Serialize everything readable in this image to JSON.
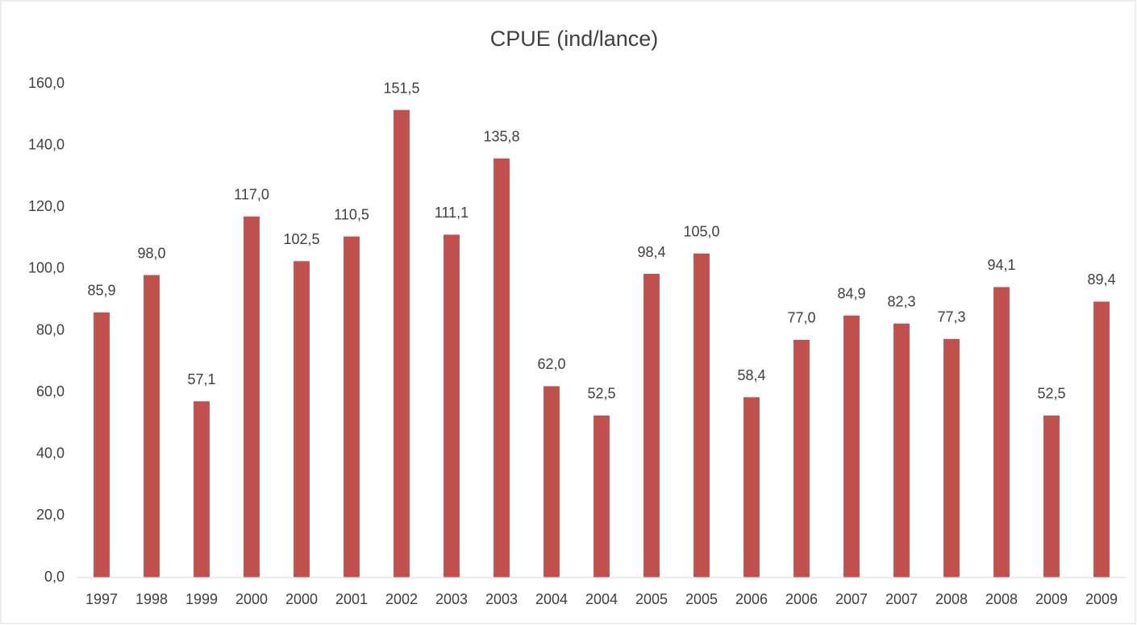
{
  "chart_data": {
    "type": "bar",
    "title": "CPUE (ind/lance)",
    "categories": [
      "1997",
      "1998",
      "1999",
      "2000",
      "2000",
      "2001",
      "2002",
      "2003",
      "2003",
      "2004",
      "2004",
      "2005",
      "2005",
      "2006",
      "2006",
      "2007",
      "2007",
      "2008",
      "2008",
      "2009",
      "2009"
    ],
    "values": [
      85.9,
      98.0,
      57.1,
      117.0,
      102.5,
      110.5,
      151.5,
      111.1,
      135.8,
      62.0,
      52.5,
      98.4,
      105.0,
      58.4,
      77.0,
      84.9,
      82.3,
      77.3,
      94.1,
      52.5,
      89.4
    ],
    "value_labels": [
      "85,9",
      "98,0",
      "57,1",
      "117,0",
      "102,5",
      "110,5",
      "151,5",
      "111,1",
      "135,8",
      "62,0",
      "52,5",
      "98,4",
      "105,0",
      "58,4",
      "77,0",
      "84,9",
      "82,3",
      "77,3",
      "94,1",
      "52,5",
      "89,4"
    ],
    "color": "#c0504d",
    "ylim": [
      0,
      160
    ],
    "yticks": [
      {
        "value": 0,
        "label": "0,0"
      },
      {
        "value": 20,
        "label": "20,0"
      },
      {
        "value": 40,
        "label": "40,0"
      },
      {
        "value": 60,
        "label": "60,0"
      },
      {
        "value": 80,
        "label": "80,0"
      },
      {
        "value": 100,
        "label": "100,0"
      },
      {
        "value": 120,
        "label": "120,0"
      },
      {
        "value": 140,
        "label": "140,0"
      },
      {
        "value": 160,
        "label": "160,0"
      }
    ],
    "grid": false
  }
}
